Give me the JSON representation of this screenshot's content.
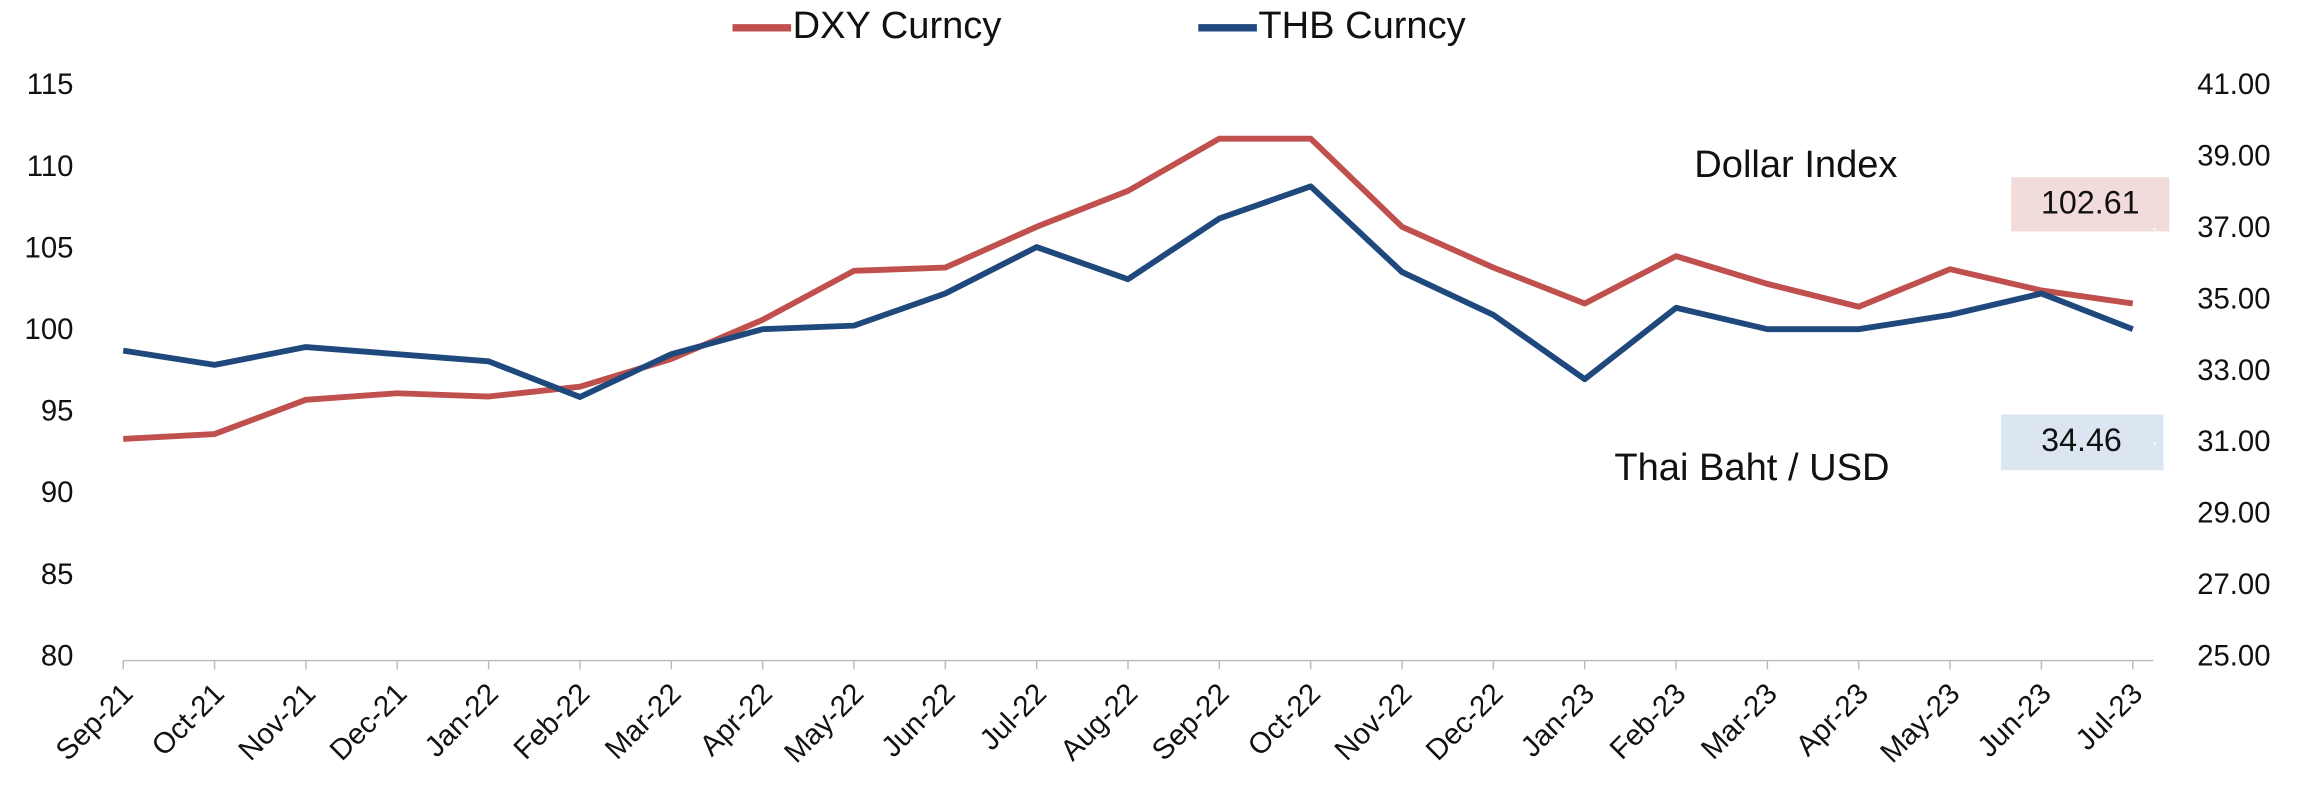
{
  "chart_data": {
    "type": "line",
    "categories": [
      "Sep-21",
      "Oct-21",
      "Nov-21",
      "Dec-21",
      "Jan-22",
      "Feb-22",
      "Mar-22",
      "Apr-22",
      "May-22",
      "Jun-22",
      "Jul-22",
      "Aug-22",
      "Sep-22",
      "Oct-22",
      "Nov-22",
      "Dec-22",
      "Jan-23",
      "Feb-23",
      "Mar-23",
      "Apr-23",
      "May-23",
      "Jun-23",
      "Jul-23"
    ],
    "series": [
      {
        "name": "DXY Curncy",
        "color": "#c0504d",
        "values": [
          93.4,
          93.7,
          95.8,
          96.2,
          96.0,
          96.6,
          98.3,
          100.7,
          103.7,
          103.9,
          106.4,
          108.6,
          111.8,
          111.8,
          106.4,
          103.9,
          101.7,
          104.6,
          102.9,
          101.5,
          103.8,
          102.5,
          101.7
        ]
      },
      {
        "name": "THB Curncy",
        "color": "#1f497d",
        "axis": "y2",
        "values": [
          33.6,
          33.2,
          33.7,
          33.5,
          33.3,
          32.3,
          33.5,
          34.2,
          34.3,
          35.2,
          36.5,
          35.6,
          37.3,
          38.2,
          35.8,
          34.6,
          32.8,
          34.8,
          34.2,
          34.2,
          34.6,
          35.2,
          34.2
        ]
      }
    ],
    "ylim": [
      80,
      115
    ],
    "yticks": [
      80,
      85,
      90,
      95,
      100,
      105,
      110,
      115
    ],
    "y2lim": [
      25,
      41
    ],
    "y2ticks": [
      {
        "value": 25,
        "label": "25.00"
      },
      {
        "value": 27,
        "label": "27.00"
      },
      {
        "value": 29,
        "label": "29.00"
      },
      {
        "value": 31,
        "label": "31.00"
      },
      {
        "value": 33,
        "label": "33.00"
      },
      {
        "value": 35,
        "label": "35.00"
      },
      {
        "value": 37,
        "label": "37.00"
      },
      {
        "value": 39,
        "label": "39.00"
      },
      {
        "value": 41,
        "label": "41.00"
      }
    ],
    "annotations": [
      "Dollar Index",
      "Thai Baht / USD"
    ],
    "last_value_labels": [
      "102.61",
      "34.46"
    ],
    "legend": "top"
  }
}
